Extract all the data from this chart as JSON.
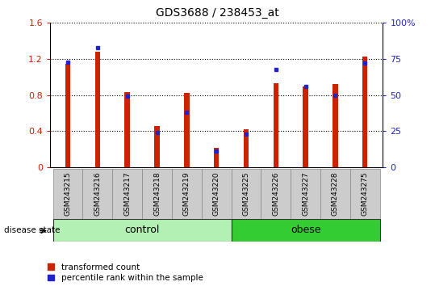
{
  "title": "GDS3688 / 238453_at",
  "samples": [
    "GSM243215",
    "GSM243216",
    "GSM243217",
    "GSM243218",
    "GSM243219",
    "GSM243220",
    "GSM243225",
    "GSM243226",
    "GSM243227",
    "GSM243228",
    "GSM243275"
  ],
  "red_values": [
    1.15,
    1.28,
    0.83,
    0.46,
    0.82,
    0.22,
    0.42,
    0.93,
    0.9,
    0.92,
    1.23
  ],
  "blue_values": [
    73,
    83,
    49,
    24,
    38,
    11,
    23,
    68,
    56,
    50,
    72
  ],
  "groups": [
    {
      "label": "control",
      "start": 0,
      "end": 5,
      "color": "#b3f0b3"
    },
    {
      "label": "obese",
      "start": 6,
      "end": 10,
      "color": "#33cc33"
    }
  ],
  "ylim_left": [
    0,
    1.6
  ],
  "ylim_right": [
    0,
    100
  ],
  "yticks_left": [
    0,
    0.4,
    0.8,
    1.2,
    1.6
  ],
  "yticks_right": [
    0,
    25,
    50,
    75,
    100
  ],
  "bar_width": 0.5,
  "red_color": "#cc2200",
  "blue_color": "#2222cc",
  "tick_bg_color": "#cccccc",
  "white": "#ffffff",
  "grid_color": "#000000",
  "disease_state_label": "disease state",
  "legend_red": "transformed count",
  "legend_blue": "percentile rank within the sample",
  "figsize": [
    5.39,
    3.54
  ],
  "dpi": 100
}
